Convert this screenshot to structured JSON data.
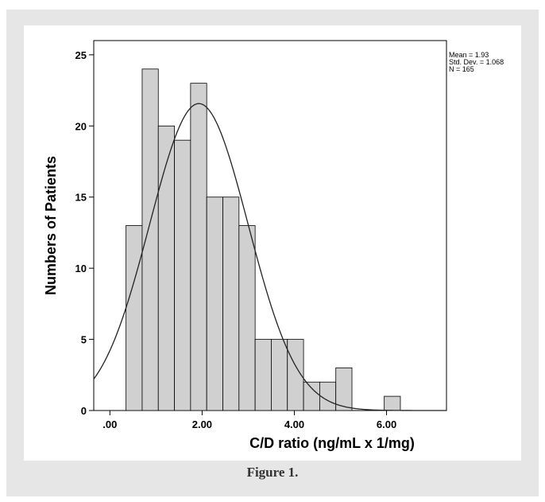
{
  "caption": "Figure 1.",
  "chart_data": {
    "type": "bar",
    "subtype": "histogram-with-normal-curve",
    "xlabel": "C/D ratio (ng/mL x 1/mg)",
    "ylabel": "Numbers of Patients",
    "xlim": [
      -0.35,
      7.3
    ],
    "ylim": [
      0,
      26
    ],
    "x_ticks": [
      0,
      2,
      4,
      6
    ],
    "x_tick_labels": [
      ".00",
      "2.00",
      "4.00",
      "6.00"
    ],
    "y_ticks": [
      0,
      5,
      10,
      15,
      20,
      25
    ],
    "y_tick_labels": [
      "0",
      "5",
      "10",
      "15",
      "20",
      "25"
    ],
    "bin_width": 0.35,
    "bin_start": 0.35,
    "values": [
      13,
      24,
      20,
      19,
      23,
      15,
      15,
      13,
      5,
      5,
      5,
      2,
      2,
      3,
      0,
      0,
      1
    ],
    "bar_color": "#d0d0d0",
    "normal_curve": {
      "mean": 1.93,
      "std": 1.068,
      "n": 165
    },
    "stats": {
      "mean": "Mean = 1.93",
      "std": "Std. Dev. = 1.068",
      "n": "N = 165"
    }
  }
}
